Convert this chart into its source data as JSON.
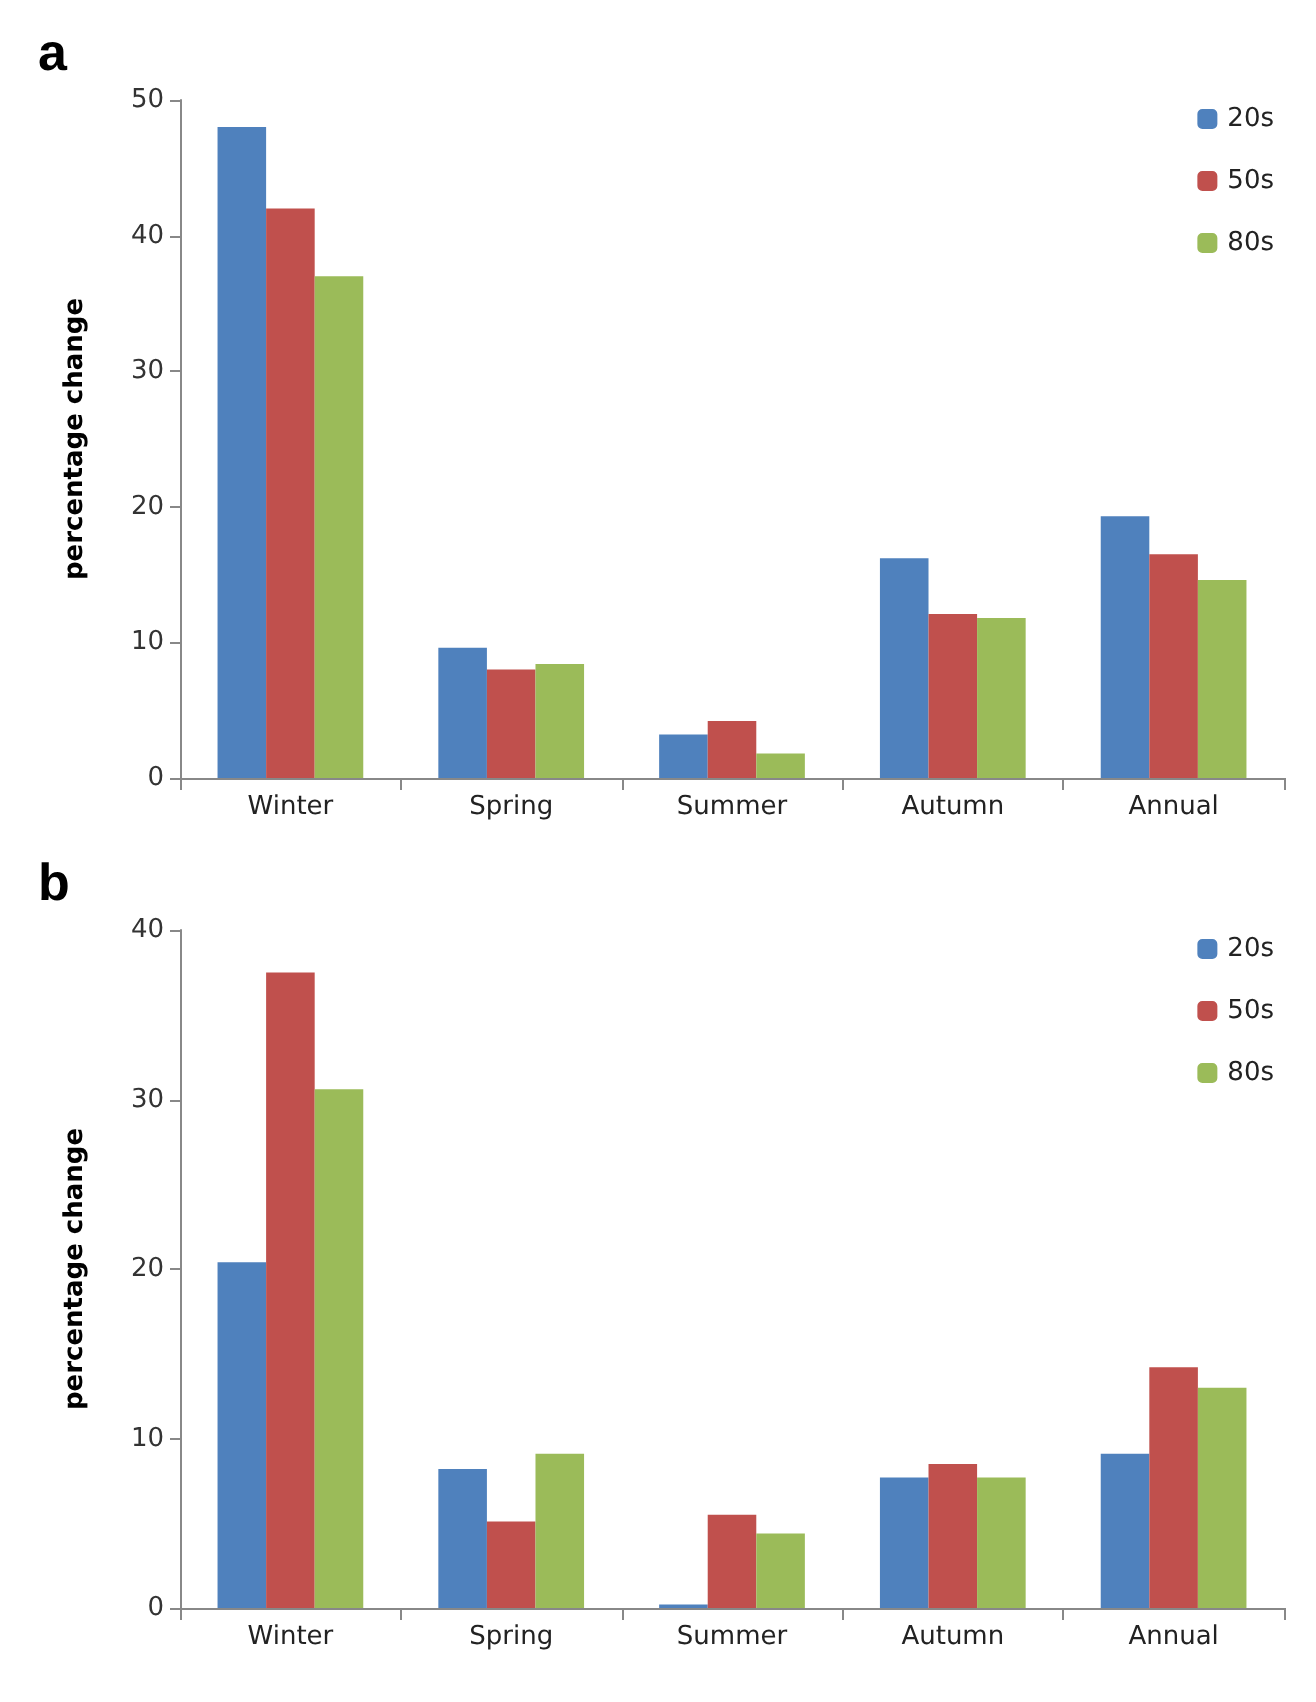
{
  "chart_data": [
    {
      "type": "bar",
      "title": "a",
      "ylabel": "percentage change",
      "categories": [
        "Winter",
        "Spring",
        "Summer",
        "Autumn",
        "Annual"
      ],
      "series": [
        {
          "name": "20s",
          "color": "#4f81bd",
          "values": [
            48,
            9.6,
            3.2,
            16.2,
            19.3
          ]
        },
        {
          "name": "50s",
          "color": "#c0504d",
          "values": [
            42,
            8.0,
            4.2,
            12.1,
            16.5
          ]
        },
        {
          "name": "80s",
          "color": "#9bbb59",
          "values": [
            37,
            8.4,
            1.8,
            11.8,
            14.6
          ]
        }
      ],
      "ylim": [
        0,
        50
      ],
      "yticks": [
        0,
        10,
        20,
        30,
        40,
        50
      ],
      "grid": false,
      "legend": "top right"
    },
    {
      "type": "bar",
      "title": "b",
      "ylabel": "percentage change",
      "categories": [
        "Winter",
        "Spring",
        "Summer",
        "Autumn",
        "Annual"
      ],
      "series": [
        {
          "name": "20s",
          "color": "#4f81bd",
          "values": [
            20.4,
            8.2,
            0.2,
            7.7,
            9.1
          ]
        },
        {
          "name": "50s",
          "color": "#c0504d",
          "values": [
            37.5,
            5.1,
            5.5,
            8.5,
            14.2
          ]
        },
        {
          "name": "80s",
          "color": "#9bbb59",
          "values": [
            30.6,
            9.1,
            4.4,
            7.7,
            13.0
          ]
        }
      ],
      "ylim": [
        0,
        40
      ],
      "yticks": [
        0,
        10,
        20,
        30,
        40
      ],
      "grid": false,
      "legend": "top right"
    }
  ]
}
